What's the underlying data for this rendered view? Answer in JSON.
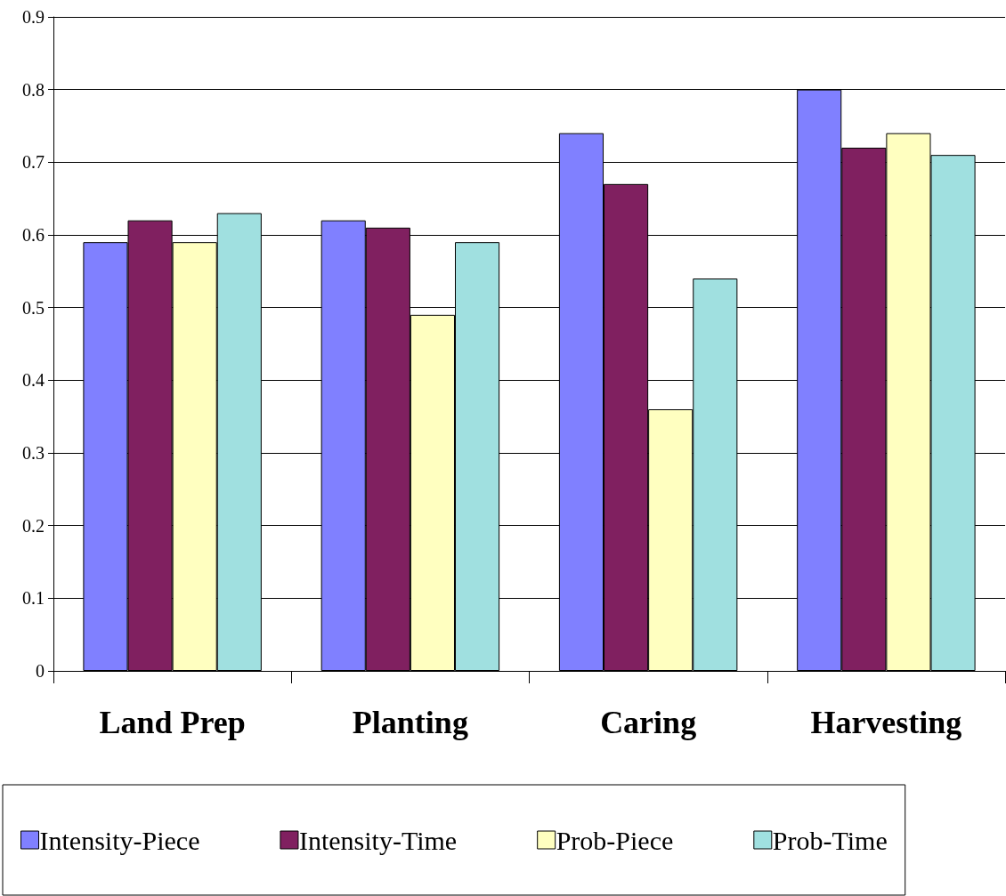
{
  "chart_data": {
    "type": "bar",
    "categories": [
      "Land Prep",
      "Planting",
      "Caring",
      "Harvesting"
    ],
    "series": [
      {
        "name": "Intensity-Piece",
        "color": "#8080ff",
        "values": [
          0.59,
          0.62,
          0.74,
          0.8
        ]
      },
      {
        "name": "Intensity-Time",
        "color": "#802060",
        "values": [
          0.62,
          0.61,
          0.67,
          0.72
        ]
      },
      {
        "name": "Prob-Piece",
        "color": "#ffffc0",
        "values": [
          0.59,
          0.49,
          0.36,
          0.74
        ]
      },
      {
        "name": "Prob-Time",
        "color": "#a0e0e0",
        "values": [
          0.63,
          0.59,
          0.54,
          0.71
        ]
      }
    ],
    "ylim": [
      0,
      0.9
    ],
    "yticks": [
      0,
      0.1,
      0.2,
      0.3,
      0.4,
      0.5,
      0.6,
      0.7,
      0.8,
      0.9
    ],
    "grid": "y",
    "legend": "bottom"
  }
}
